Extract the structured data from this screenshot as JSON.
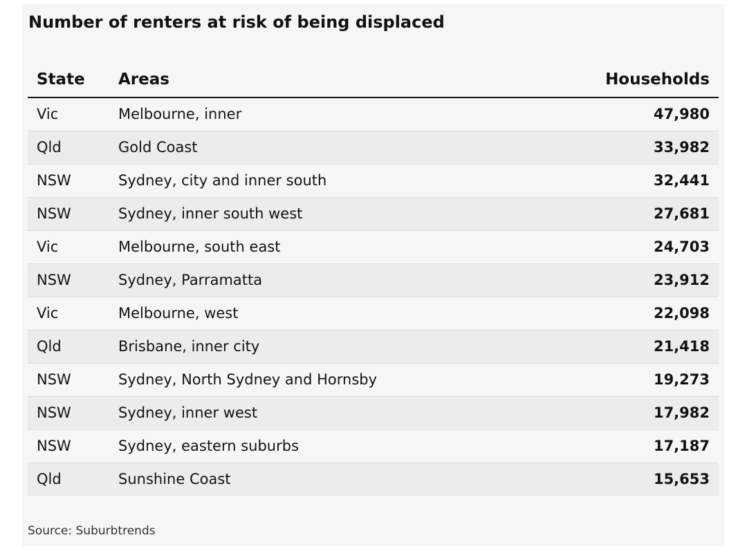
{
  "chart_data": {
    "type": "table",
    "title": "Number of renters at risk of being displaced",
    "columns": [
      "State",
      "Areas",
      "Households"
    ],
    "rows": [
      {
        "state": "Vic",
        "area": "Melbourne, inner",
        "households": "47,980"
      },
      {
        "state": "Qld",
        "area": "Gold Coast",
        "households": "33,982"
      },
      {
        "state": "NSW",
        "area": "Sydney, city and inner south",
        "households": "32,441"
      },
      {
        "state": "NSW",
        "area": "Sydney, inner south west",
        "households": "27,681"
      },
      {
        "state": "Vic",
        "area": "Melbourne, south east",
        "households": "24,703"
      },
      {
        "state": "NSW",
        "area": "Sydney, Parramatta",
        "households": "23,912"
      },
      {
        "state": "Vic",
        "area": "Melbourne, west",
        "households": "22,098"
      },
      {
        "state": "Qld",
        "area": "Brisbane, inner city",
        "households": "21,418"
      },
      {
        "state": "NSW",
        "area": "Sydney, North Sydney and Hornsby",
        "households": "19,273"
      },
      {
        "state": "NSW",
        "area": "Sydney, inner west",
        "households": "17,982"
      },
      {
        "state": "NSW",
        "area": "Sydney, eastern suburbs",
        "households": "17,187"
      },
      {
        "state": "Qld",
        "area": "Sunshine Coast",
        "households": "15,653"
      }
    ],
    "source": "Source: Suburbtrends"
  },
  "colors": {
    "text": "#121212",
    "row_light": "#f6f6f6",
    "row_dark": "#ececec"
  }
}
